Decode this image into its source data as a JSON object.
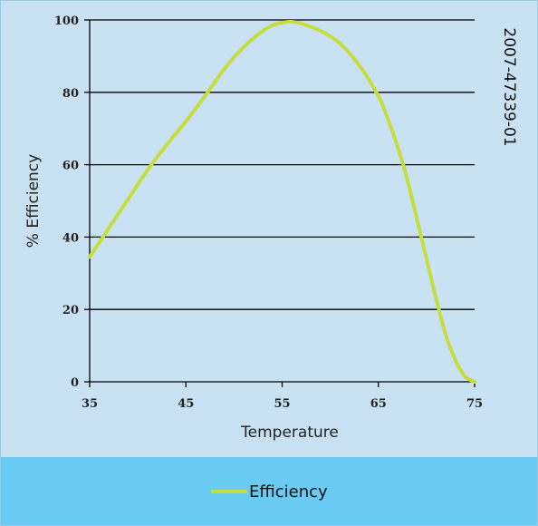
{
  "chart_data": {
    "type": "line",
    "xlabel": "Temperature",
    "ylabel": "% Efficiency",
    "xlim": [
      35,
      75
    ],
    "ylim": [
      0,
      100
    ],
    "x_ticks": [
      35,
      45,
      55,
      65,
      75
    ],
    "y_ticks": [
      0,
      20,
      40,
      60,
      80,
      100
    ],
    "grid": "horizontal",
    "legend_position": "bottom",
    "series": [
      {
        "name": "Efficiency",
        "color": "#c5dd3e",
        "x": [
          35,
          37,
          39,
          41,
          43,
          45,
          47,
          49,
          51,
          53,
          54,
          55,
          56,
          57,
          59,
          61,
          63,
          65,
          66,
          67,
          68,
          69,
          70,
          71,
          72,
          73,
          74,
          75
        ],
        "y": [
          34.5,
          42.5,
          50.5,
          58.5,
          65.5,
          72,
          79,
          86.5,
          92.5,
          97,
          98.5,
          99.3,
          99.5,
          99,
          97,
          93.5,
          87.5,
          79,
          72.5,
          65,
          56,
          45,
          34,
          23,
          13,
          6,
          1.5,
          0
        ]
      }
    ],
    "annotation": "2007-47339-01"
  },
  "legend": {
    "label": "Efficiency"
  },
  "colors": {
    "plot_background": "#c9e2f3",
    "legend_background": "#69cbf1",
    "grid": "#000000",
    "line": "#c5dd3e"
  }
}
